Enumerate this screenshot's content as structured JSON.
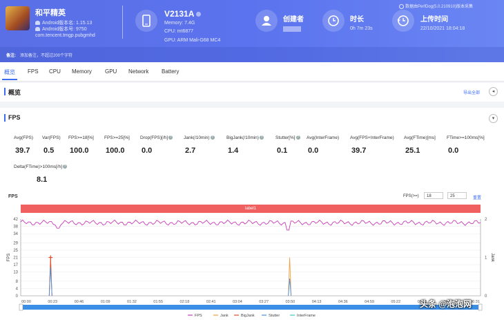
{
  "app": {
    "name": "和平精英",
    "android_version": "Android版本名: 1.15.13",
    "android_code": "Android版本号: 9750",
    "package": "com.tencent.tmgp.pubgmhd"
  },
  "device": {
    "name": "V2131A",
    "memory": "Memory: 7.4G",
    "cpu": "CPU: mt6877",
    "gpu": "GPU: ARM Mali-G68 MC4"
  },
  "creator": {
    "label": "创建者"
  },
  "duration": {
    "label": "时长",
    "value": "0h 7m 23s"
  },
  "upload": {
    "label": "上传时间",
    "value": "22/10/2021 18:04:18"
  },
  "perfdog": "数据由PerfDog(5.0.210910)版本采集",
  "note": {
    "label": "备注:",
    "placeholder": "添加备注，不超过200个字符"
  },
  "tabs": [
    "概览",
    "FPS",
    "CPU",
    "Memory",
    "GPU",
    "Network",
    "Battery"
  ],
  "overview": {
    "title": "概览",
    "export": "导出全部"
  },
  "fps_section": {
    "title": "FPS"
  },
  "metrics": [
    {
      "label": "Avg(FPS)",
      "value": "39.7",
      "help": false
    },
    {
      "label": "Var(FPS)",
      "value": "0.5",
      "help": false
    },
    {
      "label": "FPS>=18[%]",
      "value": "100.0",
      "help": false
    },
    {
      "label": "FPS>=25[%]",
      "value": "100.0",
      "help": false
    },
    {
      "label": "Drop(FPS)[/h]",
      "value": "0.0",
      "help": true
    },
    {
      "label": "Jank(/10min)",
      "value": "2.7",
      "help": true
    },
    {
      "label": "BigJank(/10min)",
      "value": "1.4",
      "help": true
    },
    {
      "label": "Stutter[%]",
      "value": "0.1",
      "help": true
    },
    {
      "label": "Avg(InterFrame)",
      "value": "0.0",
      "help": false
    },
    {
      "label": "Avg(FPS+InterFrame)",
      "value": "39.7",
      "help": false
    },
    {
      "label": "Avg(FTime)[ms]",
      "value": "25.1",
      "help": false
    },
    {
      "label": "FTime>=100ms[%]",
      "value": "0.0",
      "help": false
    },
    {
      "label": "Delta(FTime)>100ms[/h]",
      "value": "8.1",
      "help": true
    }
  ],
  "fps_filter": {
    "label": "FPS(>=)",
    "v1": "18",
    "v2": "25",
    "reset": "重置"
  },
  "label_bar": "label1",
  "chart_data": {
    "type": "line",
    "title": "FPS",
    "x": [
      "00:00",
      "00:23",
      "00:46",
      "01:09",
      "01:32",
      "01:55",
      "02:18",
      "02:41",
      "03:04",
      "03:27",
      "03:50",
      "04:13",
      "04:36",
      "04:59",
      "05:22",
      "05:45",
      "06:08",
      "06:31"
    ],
    "yticks_left": [
      0,
      4,
      8,
      13,
      17,
      21,
      25,
      29,
      34,
      38,
      42
    ],
    "yticks_right": [
      0,
      1,
      2
    ],
    "ylabel_left": "FPS",
    "ylabel_right": "Jank",
    "ylim_left": [
      0,
      42
    ],
    "ylim_right": [
      0,
      2
    ],
    "series": [
      {
        "name": "FPS",
        "color": "#c83cb8",
        "base": 40,
        "jitter": 1.5,
        "dips": [
          {
            "t": 0.08,
            "v": 37
          },
          {
            "t": 0.58,
            "v": 36
          }
        ]
      },
      {
        "name": "Jank",
        "color": "#f0a040",
        "spikes": [
          {
            "t": 0.065,
            "v": 1
          },
          {
            "t": 0.585,
            "v": 1
          }
        ]
      },
      {
        "name": "BigJank",
        "color": "#e05030",
        "spikes": [
          {
            "t": 0.065,
            "v": 1
          }
        ]
      },
      {
        "name": "Stutter",
        "color": "#4a90e0",
        "spikes": [
          {
            "t": 0.065,
            "v": 0.75
          },
          {
            "t": 0.585,
            "v": 0.45
          }
        ]
      },
      {
        "name": "InterFrame",
        "color": "#40c8c8",
        "spikes": []
      }
    ]
  },
  "watermark": "头条 @泡泡网"
}
